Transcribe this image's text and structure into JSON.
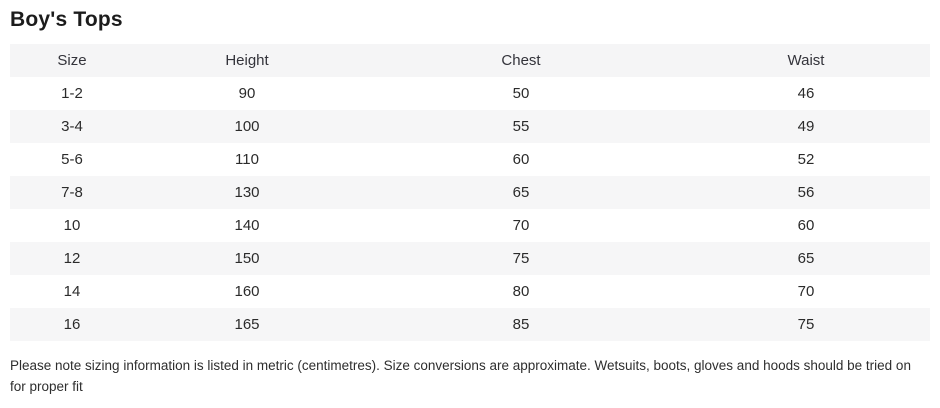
{
  "page_title": "Boy's Tops",
  "table": {
    "columns": [
      "Size",
      "Height",
      "Chest",
      "Waist"
    ],
    "rows": [
      [
        "1-2",
        "90",
        "50",
        "46"
      ],
      [
        "3-4",
        "100",
        "55",
        "49"
      ],
      [
        "5-6",
        "110",
        "60",
        "52"
      ],
      [
        "7-8",
        "130",
        "65",
        "56"
      ],
      [
        "10",
        "140",
        "70",
        "60"
      ],
      [
        "12",
        "150",
        "75",
        "65"
      ],
      [
        "14",
        "160",
        "80",
        "70"
      ],
      [
        "16",
        "165",
        "85",
        "75"
      ]
    ]
  },
  "footnote": "Please note sizing information is listed in metric (centimetres). Size conversions are approximate. Wetsuits, boots, gloves and hoods should be tried on for proper fit",
  "colors": {
    "stripe": "#f6f6f7",
    "header_bg": "#f5f5f6",
    "text": "#2b2b2b",
    "title": "#1c1c1c"
  }
}
